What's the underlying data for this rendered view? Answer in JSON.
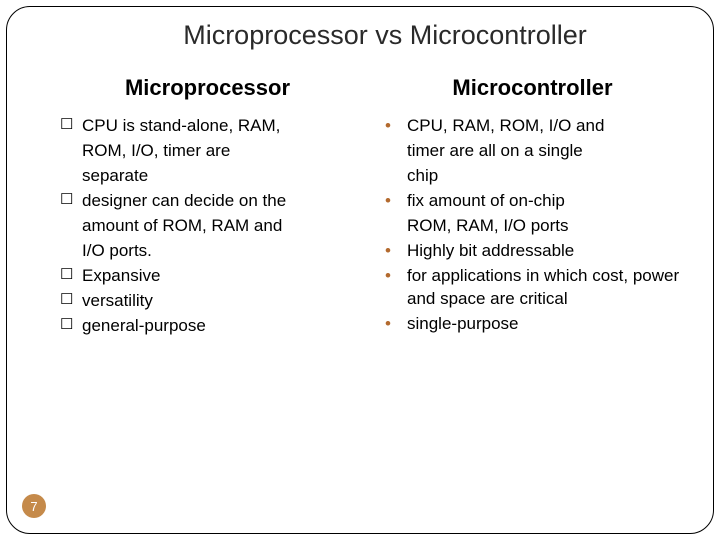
{
  "title": "Microprocessor vs Microcontroller",
  "left": {
    "heading": "Microprocessor",
    "items": [
      {
        "lines": [
          "CPU is stand-alone, RAM,",
          "ROM, I/O, timer are",
          "separate"
        ]
      },
      {
        "lines": [
          "designer can decide on the",
          "amount of ROM, RAM and",
          "I/O ports."
        ]
      },
      {
        "lines": [
          "Expansive"
        ]
      },
      {
        "lines": [
          "versatility"
        ]
      },
      {
        "lines": [
          "general-purpose"
        ]
      }
    ]
  },
  "right": {
    "heading": "Microcontroller",
    "items": [
      {
        "lines": [
          "CPU, RAM, ROM, I/O and",
          "timer are all on a single",
          "chip"
        ]
      },
      {
        "lines": [
          "fix amount of on-chip",
          "ROM, RAM, I/O ports"
        ]
      },
      {
        "lines": [
          "Highly bit addressable"
        ]
      },
      {
        "lines": [
          "for applications in which cost, power and space are critical"
        ]
      },
      {
        "lines": [
          "single-purpose"
        ]
      }
    ]
  },
  "page_number": "7",
  "colors": {
    "bullet": "#b36a2e",
    "page_badge_bg": "#c58a4a",
    "page_badge_fg": "#ffffff",
    "text": "#000000",
    "title": "#2a2a2a",
    "frame": "#000000"
  },
  "checkbox_glyph": "☐",
  "bullet_glyph": "•"
}
